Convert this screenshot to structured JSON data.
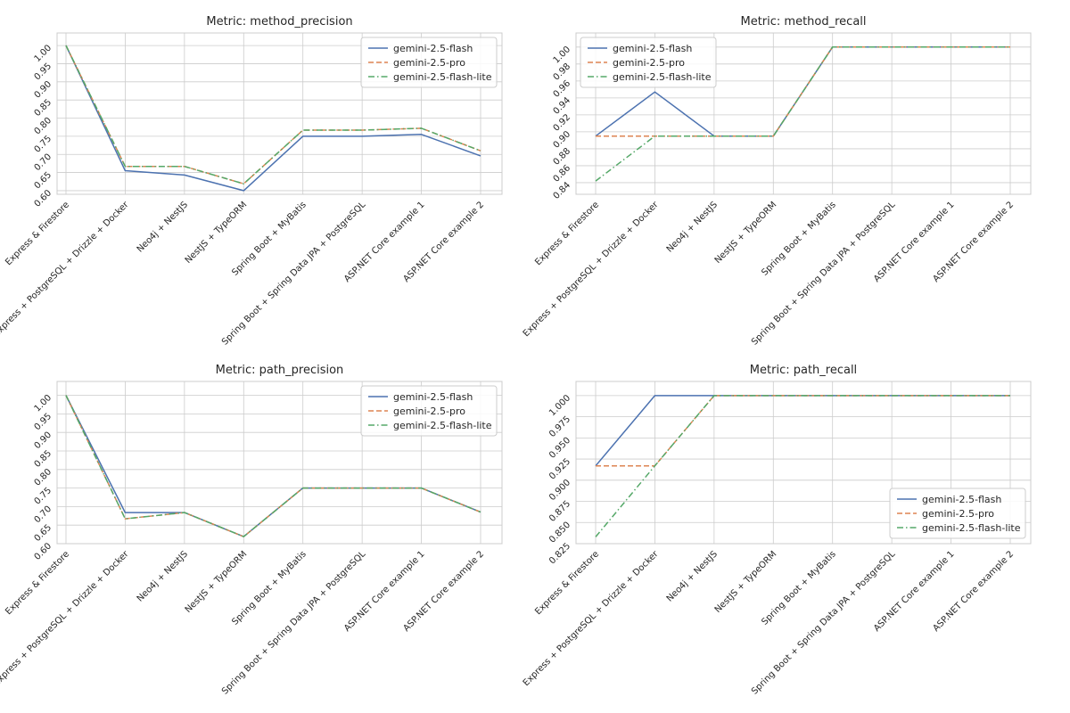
{
  "colors": {
    "gemini-2.5-flash": "#4c72b0",
    "gemini-2.5-pro": "#dd8452",
    "gemini-2.5-flash-lite": "#55a868"
  },
  "chart_data": [
    {
      "type": "line",
      "title": "Metric: method_precision",
      "categories": [
        "Express & Firestore",
        "Express + PostgreSQL + Drizzle + Docker",
        "Neo4j + NestJS",
        "NestJS + TypeORM",
        "Spring Boot + MyBatis",
        "Spring Boot + Spring Data JPA + PostgreSQL",
        "ASP.NET Core example 1",
        "ASP.NET Core example 2"
      ],
      "ylim": [
        0.59,
        1.015
      ],
      "yticks": [
        "0.60",
        "0.65",
        "0.70",
        "0.75",
        "0.80",
        "0.85",
        "0.90",
        "0.95",
        "1.00"
      ],
      "legend_position": "top-right",
      "series": [
        {
          "name": "gemini-2.5-flash",
          "style": "solid",
          "values": [
            1.0,
            0.655,
            0.643,
            0.6,
            0.75,
            0.75,
            0.755,
            0.696
          ]
        },
        {
          "name": "gemini-2.5-pro",
          "style": "dashed",
          "values": [
            1.0,
            0.667,
            0.667,
            0.619,
            0.767,
            0.767,
            0.772,
            0.71
          ]
        },
        {
          "name": "gemini-2.5-flash-lite",
          "style": "dashdot",
          "values": [
            1.0,
            0.667,
            0.667,
            0.619,
            0.767,
            0.767,
            0.772,
            0.71
          ]
        }
      ]
    },
    {
      "type": "line",
      "title": "Metric: method_recall",
      "categories": [
        "Express & Firestore",
        "Express + PostgreSQL + Drizzle + Docker",
        "Neo4j + NestJS",
        "NestJS + TypeORM",
        "Spring Boot + MyBatis",
        "Spring Boot + Spring Data JPA + PostgreSQL",
        "ASP.NET Core example 1",
        "ASP.NET Core example 2"
      ],
      "ylim": [
        0.8347,
        1.0082
      ],
      "yticks": [
        "0.84",
        "0.86",
        "0.88",
        "0.90",
        "0.92",
        "0.94",
        "0.96",
        "0.98",
        "1.00"
      ],
      "legend_position": "top-left",
      "series": [
        {
          "name": "gemini-2.5-flash",
          "style": "solid",
          "values": [
            0.895,
            0.947,
            0.895,
            0.895,
            1.0,
            1.0,
            1.0,
            1.0
          ]
        },
        {
          "name": "gemini-2.5-pro",
          "style": "dashed",
          "values": [
            0.895,
            0.895,
            0.895,
            0.895,
            1.0,
            1.0,
            1.0,
            1.0
          ]
        },
        {
          "name": "gemini-2.5-flash-lite",
          "style": "dashdot",
          "values": [
            0.842,
            0.895,
            0.895,
            0.895,
            1.0,
            1.0,
            1.0,
            1.0
          ]
        }
      ]
    },
    {
      "type": "line",
      "title": "Metric: path_precision",
      "categories": [
        "Express & Firestore",
        "Express + PostgreSQL + Drizzle + Docker",
        "Neo4j + NestJS",
        "NestJS + TypeORM",
        "Spring Boot + MyBatis",
        "Spring Boot + Spring Data JPA + PostgreSQL",
        "ASP.NET Core example 1",
        "ASP.NET Core example 2"
      ],
      "ylim": [
        0.6,
        1.0183
      ],
      "yticks": [
        "0.60",
        "0.65",
        "0.70",
        "0.75",
        "0.80",
        "0.85",
        "0.90",
        "0.95",
        "1.00"
      ],
      "legend_position": "top-right",
      "series": [
        {
          "name": "gemini-2.5-flash",
          "style": "solid",
          "values": [
            1.0,
            0.684,
            0.684,
            0.619,
            0.75,
            0.75,
            0.75,
            0.685
          ]
        },
        {
          "name": "gemini-2.5-pro",
          "style": "dashed",
          "values": [
            1.0,
            0.667,
            0.684,
            0.619,
            0.75,
            0.75,
            0.75,
            0.685
          ]
        },
        {
          "name": "gemini-2.5-flash-lite",
          "style": "dashdot",
          "values": [
            1.0,
            0.667,
            0.684,
            0.619,
            0.75,
            0.75,
            0.75,
            0.685
          ]
        }
      ]
    },
    {
      "type": "line",
      "title": "Metric: path_recall",
      "categories": [
        "Express & Firestore",
        "Express + PostgreSQL + Drizzle + Docker",
        "Neo4j + NestJS",
        "NestJS + TypeORM",
        "Spring Boot + MyBatis",
        "Spring Boot + Spring Data JPA + PostgreSQL",
        "ASP.NET Core example 1",
        "ASP.NET Core example 2"
      ],
      "ylim": [
        0.825,
        1.0083
      ],
      "yticks": [
        "0.825",
        "0.850",
        "0.875",
        "0.900",
        "0.925",
        "0.950",
        "0.975",
        "1.000"
      ],
      "legend_position": "bottom-right",
      "series": [
        {
          "name": "gemini-2.5-flash",
          "style": "solid",
          "values": [
            0.917,
            1.0,
            1.0,
            1.0,
            1.0,
            1.0,
            1.0,
            1.0
          ]
        },
        {
          "name": "gemini-2.5-pro",
          "style": "dashed",
          "values": [
            0.917,
            0.917,
            1.0,
            1.0,
            1.0,
            1.0,
            1.0,
            1.0
          ]
        },
        {
          "name": "gemini-2.5-flash-lite",
          "style": "dashdot",
          "values": [
            0.833,
            0.917,
            1.0,
            1.0,
            1.0,
            1.0,
            1.0,
            1.0
          ]
        }
      ]
    }
  ]
}
